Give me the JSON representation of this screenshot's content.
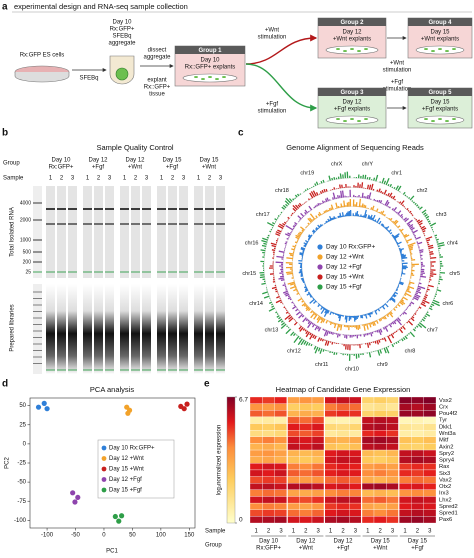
{
  "panel_a": {
    "letter": "a",
    "title": "experimental design and RNA-seq sample collection",
    "es_cells": "Rx:GFP ES cells",
    "sfebq": "SFEBq",
    "aggregate": [
      "Day 10",
      "Rx:GFP+",
      "SFEBq",
      "aggregate"
    ],
    "dissect": [
      "dissect",
      "aggregate"
    ],
    "explant": [
      "explant",
      "Rx::GFP+",
      "tissue"
    ],
    "groups": [
      {
        "name": "Group 1",
        "lines": [
          "Day 10",
          "Rx::GFP+ explants"
        ]
      },
      {
        "name": "Group 2",
        "lines": [
          "Day 12",
          "+Wnt explants"
        ]
      },
      {
        "name": "Group 4",
        "lines": [
          "Day 15",
          "+Wnt explants"
        ]
      },
      {
        "name": "Group 3",
        "lines": [
          "Day 12",
          "+Fgf explants"
        ]
      },
      {
        "name": "Group 5",
        "lines": [
          "Day 15",
          "+Fgf explants"
        ]
      }
    ],
    "wnt_1": [
      "+Wnt",
      "stimulation"
    ],
    "wnt_2": [
      "+Wnt",
      "stimulation"
    ],
    "fgf_1": [
      "+Fgf",
      "stimulation"
    ],
    "fgf_2": [
      "+Fgf",
      "stimulation"
    ]
  },
  "panel_b": {
    "letter": "b",
    "title": "Sample Quality Control",
    "group_label": "Group",
    "sample_label": "Sample",
    "groups": [
      [
        "Day 10",
        "Rx:GFP+"
      ],
      [
        "Day 12",
        "+Fgf"
      ],
      [
        "Day 12",
        "+Wnt"
      ],
      [
        "Day 15",
        "+Fgf"
      ],
      [
        "Day 15",
        "+Wnt"
      ]
    ],
    "samples": [
      "1",
      "2",
      "3"
    ],
    "ladder": [
      4000,
      2000,
      1000,
      500,
      200,
      25
    ],
    "rna_label": "Total Isolated RNA",
    "library_label": "Prepared libraries"
  },
  "panel_c": {
    "letter": "c",
    "title": "Genome Alignment of Sequencing Reads",
    "chromosomes": [
      "chrY",
      "chr1",
      "chr2",
      "chr3",
      "chr4",
      "chr5",
      "chr6",
      "chr7",
      "chr8",
      "chr9",
      "chr10",
      "chr11",
      "chr12",
      "chr13",
      "chr14",
      "chr15",
      "chr16",
      "chr17",
      "chr18",
      "chr19",
      "chrX"
    ],
    "legend": [
      {
        "name": "Day 10 Rx:GFP+",
        "color": "#2f7fd8"
      },
      {
        "name": "Day 12 +Wnt",
        "color": "#f2a22a"
      },
      {
        "name": "Day 12 +Fgf",
        "color": "#8e44ad"
      },
      {
        "name": "Day 15 +Wnt",
        "color": "#c8201e"
      },
      {
        "name": "Day 15 +Fgf",
        "color": "#2e9e48"
      }
    ]
  },
  "panel_d": {
    "letter": "d",
    "title": "PCA analysis",
    "x_label": "PC1",
    "y_label": "PC2",
    "xlim": [
      -130,
      160
    ],
    "ylim": [
      -110,
      60
    ],
    "xticks": [
      -100,
      -50,
      0,
      50,
      100,
      150
    ],
    "yticks": [
      50,
      25,
      0,
      -25,
      -50,
      -75,
      -100
    ],
    "series": [
      {
        "name": "Day 10 Rx:GFP+",
        "color": "#2f7fd8",
        "x": [
          -115,
          -105,
          -100
        ],
        "y": [
          48,
          53,
          46
        ]
      },
      {
        "name": "Day 12 +Wnt",
        "color": "#f2a22a",
        "x": [
          40,
          45,
          42
        ],
        "y": [
          48,
          44,
          40
        ]
      },
      {
        "name": "Day 15 +Wnt",
        "color": "#c8201e",
        "x": [
          135,
          141,
          146
        ],
        "y": [
          49,
          46,
          52
        ]
      },
      {
        "name": "Day 12 +Fgf",
        "color": "#8e44ad",
        "x": [
          -55,
          -46,
          -51
        ],
        "y": [
          -64,
          -70,
          -76
        ]
      },
      {
        "name": "Day 15 +Fgf",
        "color": "#2e9e48",
        "x": [
          20,
          26,
          31
        ],
        "y": [
          -95,
          -101,
          -94
        ]
      }
    ]
  },
  "panel_e": {
    "letter": "e",
    "title": "Heatmap of Candidate Gene Expression",
    "colorbar_label": "log₂normalized expression",
    "clim": [
      0,
      6.7
    ],
    "cticks": [
      6.7,
      0
    ],
    "sample_label": "Sample",
    "group_label": "Group",
    "samples": [
      "1",
      "2",
      "3"
    ],
    "groups": [
      [
        "Day 10",
        "Rx:GFP+"
      ],
      [
        "Day 12",
        "+Wnt"
      ],
      [
        "Day 12",
        "+Fgf"
      ],
      [
        "Day 15",
        "+Wnt"
      ],
      [
        "Day 15",
        "+Fgf"
      ]
    ],
    "genes": [
      "Vsx2",
      "Crx",
      "Pou4f2",
      "Tyr",
      "Dkk1",
      "Wnt3a",
      "Mitf",
      "Axin2",
      "Spry2",
      "Spry4",
      "Rax",
      "Six3",
      "Vax2",
      "Otx2",
      "Irx3",
      "Lhx2",
      "Spred2",
      "Spred1",
      "Pax6"
    ],
    "values": [
      [
        5.2,
        5.0,
        5.3,
        3.5,
        3.8,
        3.6,
        5.6,
        5.8,
        5.7,
        2.0,
        2.2,
        1.9,
        6.6,
        6.5,
        6.7
      ],
      [
        3.8,
        3.6,
        3.9,
        2.2,
        2.5,
        2.3,
        4.2,
        4.5,
        4.4,
        1.2,
        1.4,
        1.1,
        6.2,
        6.0,
        6.3
      ],
      [
        4.6,
        4.4,
        4.7,
        3.0,
        3.2,
        3.1,
        5.0,
        5.2,
        5.1,
        2.0,
        2.3,
        2.1,
        6.4,
        6.3,
        6.5
      ],
      [
        0.8,
        0.9,
        0.7,
        4.6,
        4.4,
        4.8,
        0.6,
        0.5,
        0.7,
        5.8,
        6.0,
        5.9,
        0.4,
        0.5,
        0.3
      ],
      [
        2.4,
        2.2,
        2.5,
        5.4,
        5.2,
        5.5,
        1.8,
        1.6,
        1.9,
        6.0,
        6.1,
        5.9,
        1.2,
        1.0,
        1.3
      ],
      [
        1.6,
        1.5,
        1.8,
        4.8,
        4.6,
        4.9,
        1.0,
        1.2,
        0.9,
        5.2,
        5.4,
        5.1,
        0.8,
        0.7,
        0.9
      ],
      [
        4.0,
        4.2,
        3.9,
        5.6,
        5.5,
        5.7,
        3.2,
        3.0,
        3.3,
        6.2,
        6.3,
        6.1,
        2.6,
        2.4,
        2.7
      ],
      [
        3.0,
        3.2,
        2.9,
        5.8,
        5.6,
        5.9,
        2.6,
        2.4,
        2.7,
        5.9,
        6.0,
        5.8,
        2.2,
        2.0,
        2.3
      ],
      [
        3.6,
        3.8,
        3.5,
        3.0,
        2.8,
        3.1,
        5.4,
        5.6,
        5.5,
        2.8,
        2.6,
        2.9,
        5.8,
        5.9,
        5.7
      ],
      [
        3.2,
        3.4,
        3.1,
        2.6,
        2.4,
        2.7,
        5.6,
        5.8,
        5.7,
        2.4,
        2.2,
        2.5,
        6.0,
        6.2,
        6.1
      ],
      [
        5.4,
        5.6,
        5.5,
        4.2,
        4.0,
        4.3,
        5.2,
        5.4,
        5.3,
        3.6,
        3.8,
        3.5,
        5.0,
        5.2,
        5.1
      ],
      [
        5.6,
        5.4,
        5.7,
        4.6,
        4.4,
        4.7,
        5.3,
        5.5,
        5.4,
        4.0,
        4.2,
        3.9,
        5.2,
        5.0,
        5.3
      ],
      [
        4.8,
        5.0,
        4.9,
        3.8,
        3.6,
        3.9,
        4.4,
        4.6,
        4.5,
        3.2,
        3.0,
        3.3,
        4.2,
        4.4,
        4.3
      ],
      [
        5.8,
        5.9,
        5.7,
        6.0,
        6.1,
        5.9,
        5.5,
        5.6,
        5.4,
        6.2,
        6.3,
        6.1,
        5.4,
        5.5,
        5.3
      ],
      [
        4.2,
        4.4,
        4.3,
        3.4,
        3.2,
        3.5,
        4.0,
        4.2,
        4.1,
        2.8,
        3.0,
        2.7,
        3.8,
        4.0,
        3.9
      ],
      [
        5.6,
        5.8,
        5.7,
        5.0,
        4.8,
        5.1,
        5.7,
        5.9,
        5.8,
        4.4,
        4.6,
        4.3,
        5.6,
        5.8,
        5.7
      ],
      [
        4.0,
        4.2,
        4.1,
        3.6,
        3.4,
        3.7,
        5.0,
        5.2,
        5.1,
        3.4,
        3.2,
        3.5,
        5.4,
        5.6,
        5.5
      ],
      [
        4.8,
        5.0,
        4.9,
        4.4,
        4.2,
        4.5,
        5.4,
        5.6,
        5.5,
        4.2,
        4.0,
        4.3,
        5.8,
        6.0,
        5.9
      ],
      [
        6.0,
        6.1,
        6.2,
        5.6,
        5.5,
        5.7,
        6.1,
        6.2,
        6.0,
        5.2,
        5.4,
        5.1,
        6.3,
        6.4,
        6.2
      ]
    ]
  }
}
